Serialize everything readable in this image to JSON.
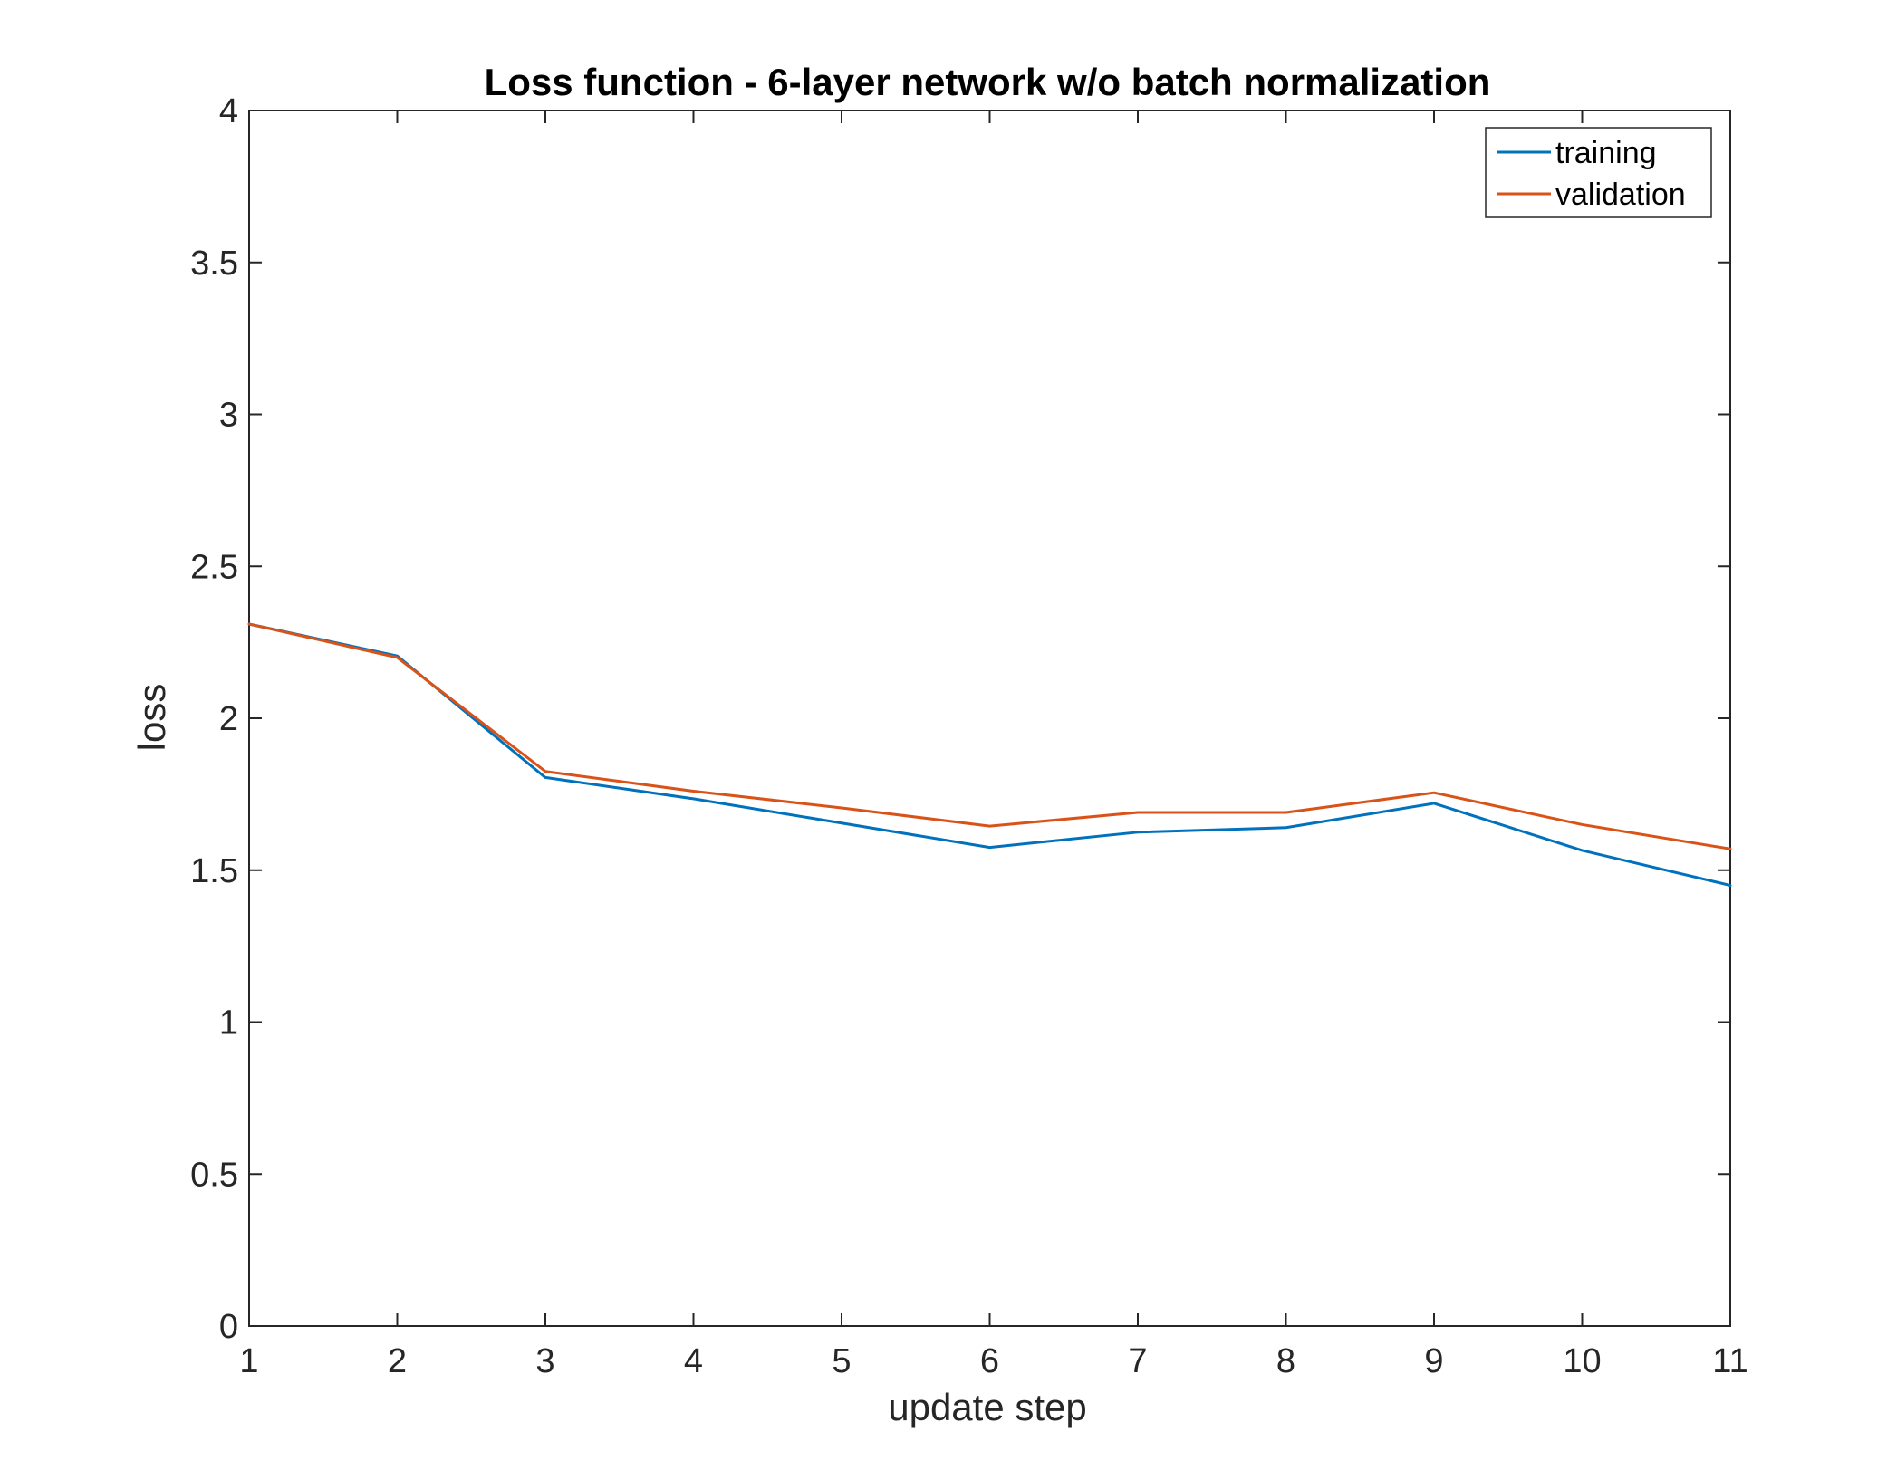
{
  "chart_data": {
    "type": "line",
    "title": "Loss function - 6-layer network w/o batch normalization",
    "xlabel": "update step",
    "ylabel": "loss",
    "xlim": [
      1,
      11
    ],
    "ylim": [
      0,
      4
    ],
    "xticks": [
      1,
      2,
      3,
      4,
      5,
      6,
      7,
      8,
      9,
      10,
      11
    ],
    "yticks": [
      0,
      0.5,
      1,
      1.5,
      2,
      2.5,
      3,
      3.5,
      4
    ],
    "xtick_labels": [
      "1",
      "2",
      "3",
      "4",
      "5",
      "6",
      "7",
      "8",
      "9",
      "10",
      "11"
    ],
    "ytick_labels": [
      "0",
      "0.5",
      "1",
      "1.5",
      "2",
      "2.5",
      "3",
      "3.5",
      "4"
    ],
    "grid": false,
    "legend_position": "top-right",
    "x": [
      1,
      2,
      3,
      4,
      5,
      6,
      7,
      8,
      9,
      10,
      11
    ],
    "series": [
      {
        "name": "training",
        "color": "#0072BD",
        "values": [
          2.31,
          2.205,
          1.805,
          1.735,
          1.655,
          1.575,
          1.625,
          1.64,
          1.72,
          1.565,
          1.45
        ]
      },
      {
        "name": "validation",
        "color": "#D95319",
        "values": [
          2.31,
          2.2,
          1.825,
          1.76,
          1.705,
          1.645,
          1.69,
          1.69,
          1.755,
          1.65,
          1.57
        ]
      }
    ]
  }
}
